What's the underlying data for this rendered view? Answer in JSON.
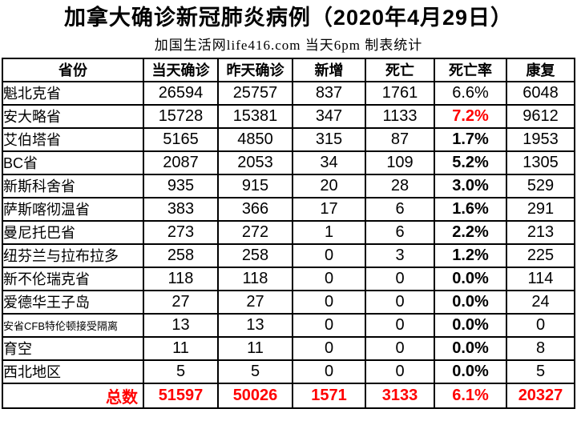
{
  "title": "加拿大确诊新冠肺炎病例（2020年4月29日）",
  "subtitle": "加国生活网life416.com 当天6pm 制表统计",
  "colors": {
    "text": "#000000",
    "highlight_red": "#ff0000",
    "border": "#000000",
    "background": "#ffffff"
  },
  "chart_data": {
    "type": "table",
    "title": "加拿大确诊新冠肺炎病例（2020年4月29日）",
    "subtitle": "加国生活网life416.com 当天6pm 制表统计",
    "columns": [
      "省份",
      "当天确诊",
      "昨天确诊",
      "新增",
      "死亡",
      "死亡率",
      "康复"
    ],
    "rows": [
      {
        "province": "魁北克省",
        "values": [
          "26594",
          "25757",
          "837",
          "1761",
          "6.6%",
          "6048"
        ],
        "rate_style": "normal",
        "small": false
      },
      {
        "province": "安大略省",
        "values": [
          "15728",
          "15381",
          "347",
          "1133",
          "7.2%",
          "9612"
        ],
        "rate_style": "red",
        "small": false
      },
      {
        "province": "艾伯塔省",
        "values": [
          "5165",
          "4850",
          "315",
          "87",
          "1.7%",
          "1953"
        ],
        "rate_style": "bold",
        "small": false
      },
      {
        "province": "BC省",
        "values": [
          "2087",
          "2053",
          "34",
          "109",
          "5.2%",
          "1305"
        ],
        "rate_style": "bold",
        "small": false
      },
      {
        "province": "新斯科舍省",
        "values": [
          "935",
          "915",
          "20",
          "28",
          "3.0%",
          "529"
        ],
        "rate_style": "bold",
        "small": false
      },
      {
        "province": "萨斯喀彻温省",
        "values": [
          "383",
          "366",
          "17",
          "6",
          "1.6%",
          "291"
        ],
        "rate_style": "bold",
        "small": false
      },
      {
        "province": "曼尼托巴省",
        "values": [
          "273",
          "272",
          "1",
          "6",
          "2.2%",
          "213"
        ],
        "rate_style": "bold",
        "small": false
      },
      {
        "province": "纽芬兰与拉布拉多",
        "values": [
          "258",
          "258",
          "0",
          "3",
          "1.2%",
          "225"
        ],
        "rate_style": "bold",
        "small": false
      },
      {
        "province": "新不伦瑞克省",
        "values": [
          "118",
          "118",
          "0",
          "0",
          "0.0%",
          "114"
        ],
        "rate_style": "bold",
        "small": false
      },
      {
        "province": "爱德华王子岛",
        "values": [
          "27",
          "27",
          "0",
          "0",
          "0.0%",
          "24"
        ],
        "rate_style": "bold",
        "small": false
      },
      {
        "province": "安省CFB特伦顿接受隔离",
        "values": [
          "13",
          "13",
          "0",
          "0",
          "0.0%",
          "0"
        ],
        "rate_style": "bold",
        "small": true
      },
      {
        "province": "育空",
        "values": [
          "11",
          "11",
          "0",
          "0",
          "0.0%",
          "8"
        ],
        "rate_style": "bold",
        "small": false
      },
      {
        "province": "西北地区",
        "values": [
          "5",
          "5",
          "0",
          "0",
          "0.0%",
          "5"
        ],
        "rate_style": "bold",
        "small": false
      }
    ],
    "total": {
      "label": "总数",
      "values": [
        "51597",
        "50026",
        "1571",
        "3133",
        "6.1%",
        "20327"
      ]
    }
  }
}
